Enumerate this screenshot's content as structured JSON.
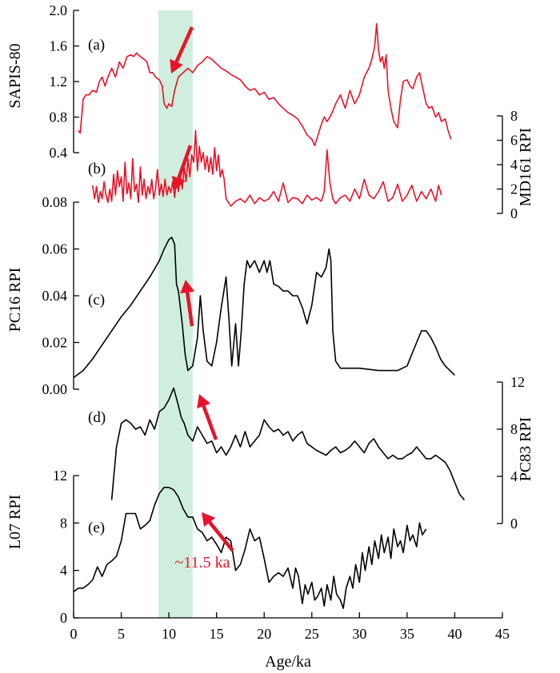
{
  "chart_data": {
    "type": "line",
    "xlabel": "Age/ka",
    "xlim": [
      0,
      45
    ],
    "xticks": [
      0,
      5,
      10,
      15,
      20,
      25,
      30,
      35,
      40,
      45
    ],
    "highlight": {
      "x_range": [
        8.9,
        12.5
      ],
      "color": "#cfeedd",
      "label": "~11.5 ka",
      "label_color": "#e8132a"
    },
    "arrow_color": "#e8132a",
    "panels": [
      {
        "id": "a",
        "label": "(a)",
        "ylabel": "SAPIS-80",
        "side": "left",
        "color": "#e8132a",
        "ylim": [
          0.4,
          2.0
        ],
        "ticks": [
          0.4,
          0.8,
          1.2,
          1.6,
          2.0
        ],
        "tick_labels": [
          "0.4",
          "0.8",
          "1.2",
          "1.6",
          "2.0"
        ],
        "x": [
          0.5,
          0.7,
          1.0,
          1.3,
          1.6,
          2.0,
          2.4,
          2.7,
          3.0,
          3.3,
          3.6,
          4.0,
          4.4,
          4.8,
          5.2,
          5.6,
          6.0,
          6.3,
          6.6,
          7.0,
          7.4,
          7.7,
          8.0,
          8.3,
          8.6,
          9.0,
          9.3,
          9.5,
          9.8,
          10.0,
          10.3,
          10.6,
          11.0,
          11.5,
          12.0,
          12.5,
          13.0,
          13.5,
          14.0,
          14.5,
          15.0,
          15.5,
          16.0,
          16.5,
          17.0,
          17.5,
          18.0,
          18.5,
          19.0,
          19.5,
          20.0,
          20.5,
          21.0,
          21.5,
          22.0,
          22.5,
          23.0,
          23.5,
          24.0,
          24.5,
          25.0,
          25.3,
          25.6,
          26.0,
          26.3,
          26.6,
          27.0,
          27.5,
          28.0,
          28.5,
          29.0,
          29.5,
          30.0,
          30.5,
          31.0,
          31.3,
          31.6,
          31.8,
          32.0,
          32.2,
          32.4,
          32.6,
          32.8,
          33.0,
          33.3,
          33.6,
          34.0,
          34.3,
          34.6,
          35.0,
          35.3,
          35.6,
          36.0,
          36.3,
          36.6,
          37.0,
          37.3,
          37.6,
          38.0,
          38.3,
          38.6,
          39.0,
          39.3,
          39.6
        ],
        "y": [
          0.65,
          0.62,
          1.0,
          1.05,
          1.05,
          1.1,
          1.08,
          1.2,
          1.25,
          1.15,
          1.25,
          1.35,
          1.25,
          1.42,
          1.35,
          1.48,
          1.5,
          1.48,
          1.52,
          1.48,
          1.45,
          1.42,
          1.3,
          1.3,
          1.25,
          1.22,
          1.15,
          0.95,
          0.9,
          0.95,
          0.92,
          1.1,
          1.25,
          1.3,
          1.35,
          1.3,
          1.38,
          1.42,
          1.48,
          1.45,
          1.4,
          1.35,
          1.32,
          1.28,
          1.25,
          1.22,
          1.15,
          1.1,
          1.12,
          1.05,
          1.08,
          1.0,
          1.02,
          0.95,
          0.9,
          0.85,
          0.82,
          0.78,
          0.7,
          0.6,
          0.55,
          0.48,
          0.58,
          0.72,
          0.8,
          0.75,
          0.82,
          0.95,
          1.05,
          0.9,
          1.1,
          0.95,
          1.05,
          1.25,
          1.35,
          1.45,
          1.6,
          1.85,
          1.55,
          1.42,
          1.48,
          1.35,
          1.5,
          1.1,
          0.9,
          0.75,
          0.68,
          1.0,
          1.2,
          1.22,
          1.15,
          1.12,
          1.25,
          1.3,
          1.15,
          0.95,
          0.9,
          0.92,
          0.8,
          0.85,
          0.75,
          0.78,
          0.65,
          0.55
        ]
      },
      {
        "id": "b",
        "label": "(b)",
        "ylabel": "MD161 RPI",
        "side": "right",
        "color": "#e8132a",
        "ylim": [
          0,
          8
        ],
        "ticks": [
          0,
          2,
          4,
          6,
          8
        ],
        "tick_labels": [
          "0",
          "2",
          "4",
          "6",
          "8"
        ],
        "x": [
          2.0,
          2.2,
          2.4,
          2.6,
          2.8,
          3.0,
          3.2,
          3.4,
          3.6,
          3.8,
          4.0,
          4.2,
          4.4,
          4.6,
          4.8,
          5.0,
          5.2,
          5.4,
          5.6,
          5.8,
          6.0,
          6.2,
          6.4,
          6.6,
          6.8,
          7.0,
          7.2,
          7.4,
          7.6,
          7.8,
          8.0,
          8.2,
          8.4,
          8.6,
          8.8,
          9.0,
          9.2,
          9.4,
          9.6,
          9.8,
          10.0,
          10.2,
          10.4,
          10.6,
          10.8,
          11.0,
          11.2,
          11.4,
          11.6,
          11.8,
          12.0,
          12.2,
          12.4,
          12.6,
          12.8,
          13.0,
          13.2,
          13.4,
          13.6,
          13.8,
          14.0,
          14.2,
          14.4,
          14.6,
          14.8,
          15.0,
          15.2,
          15.4,
          15.6,
          15.8,
          16.0,
          16.5,
          17.0,
          17.5,
          18.0,
          18.5,
          19.0,
          19.5,
          20.0,
          20.5,
          21.0,
          21.5,
          22.0,
          22.5,
          23.0,
          23.5,
          24.0,
          24.5,
          25.0,
          25.5,
          26.0,
          26.3,
          26.6,
          26.9,
          27.2,
          27.5,
          28.0,
          28.5,
          29.0,
          29.5,
          30.0,
          30.5,
          31.0,
          31.5,
          32.0,
          32.5,
          33.0,
          33.5,
          34.0,
          34.5,
          35.0,
          35.5,
          36.0,
          36.5,
          37.0,
          37.5,
          38.0,
          38.3,
          38.6
        ],
        "y": [
          2.3,
          1.2,
          2.2,
          0.9,
          1.8,
          1.2,
          2.6,
          1.5,
          0.9,
          2.0,
          1.0,
          3.2,
          1.5,
          3.5,
          2.2,
          3.0,
          1.0,
          4.2,
          1.6,
          2.5,
          1.2,
          4.5,
          1.8,
          2.4,
          0.9,
          3.8,
          1.5,
          2.8,
          1.2,
          2.2,
          1.6,
          2.8,
          1.2,
          2.0,
          3.6,
          1.5,
          2.4,
          1.4,
          2.8,
          1.5,
          2.2,
          1.7,
          2.6,
          1.3,
          2.8,
          1.8,
          3.0,
          2.0,
          3.8,
          2.6,
          4.5,
          3.0,
          4.8,
          4.2,
          6.8,
          3.5,
          5.5,
          4.2,
          5.0,
          3.6,
          4.7,
          3.4,
          4.6,
          3.2,
          5.4,
          3.5,
          4.8,
          3.0,
          3.6,
          2.8,
          1.2,
          0.6,
          1.0,
          1.2,
          0.9,
          1.5,
          0.8,
          1.3,
          1.0,
          1.2,
          1.8,
          1.0,
          2.5,
          0.9,
          1.3,
          1.2,
          0.8,
          1.5,
          1.1,
          1.3,
          1.0,
          1.8,
          5.2,
          2.5,
          1.2,
          0.8,
          1.3,
          1.5,
          1.0,
          2.0,
          1.2,
          2.8,
          1.5,
          1.2,
          1.8,
          2.6,
          1.0,
          1.3,
          2.4,
          1.0,
          1.5,
          2.3,
          1.0,
          1.8,
          1.2,
          2.0,
          1.0,
          2.3,
          1.5
        ]
      },
      {
        "id": "c",
        "label": "(c)",
        "ylabel": "PC16 RPI",
        "side": "left",
        "color": "#000000",
        "ylim": [
          0.0,
          0.08
        ],
        "ticks": [
          0.0,
          0.02,
          0.04,
          0.06,
          0.08
        ],
        "tick_labels": [
          "0.00",
          "0.02",
          "0.04",
          "0.06",
          "0.08"
        ],
        "x": [
          0.0,
          1.0,
          2.0,
          3.0,
          4.0,
          5.0,
          6.0,
          7.0,
          8.0,
          9.0,
          9.5,
          10.0,
          10.3,
          10.6,
          10.8,
          11.0,
          11.2,
          11.4,
          11.7,
          12.0,
          12.5,
          13.0,
          13.3,
          13.6,
          14.0,
          14.5,
          15.0,
          15.5,
          16.0,
          16.3,
          16.6,
          17.0,
          17.3,
          17.6,
          17.9,
          18.2,
          18.5,
          19.0,
          19.5,
          20.0,
          20.3,
          20.6,
          21.0,
          21.5,
          22.0,
          22.5,
          23.0,
          23.5,
          24.0,
          24.5,
          25.0,
          25.5,
          26.0,
          26.5,
          26.8,
          27.0,
          27.2,
          27.5,
          28.0,
          29.0,
          30.0,
          32.0,
          34.0,
          35.0,
          35.5,
          36.0,
          36.5,
          37.0,
          37.5,
          38.0,
          38.5,
          39.0,
          39.5,
          40.0
        ],
        "y": [
          0.005,
          0.008,
          0.013,
          0.019,
          0.025,
          0.031,
          0.036,
          0.042,
          0.048,
          0.055,
          0.06,
          0.064,
          0.065,
          0.062,
          0.045,
          0.042,
          0.035,
          0.028,
          0.015,
          0.008,
          0.01,
          0.022,
          0.04,
          0.025,
          0.012,
          0.01,
          0.02,
          0.035,
          0.048,
          0.03,
          0.01,
          0.028,
          0.01,
          0.025,
          0.045,
          0.055,
          0.052,
          0.055,
          0.05,
          0.055,
          0.05,
          0.055,
          0.045,
          0.044,
          0.042,
          0.042,
          0.04,
          0.04,
          0.035,
          0.028,
          0.036,
          0.05,
          0.048,
          0.052,
          0.06,
          0.055,
          0.025,
          0.012,
          0.009,
          0.009,
          0.009,
          0.008,
          0.008,
          0.01,
          0.015,
          0.02,
          0.025,
          0.025,
          0.022,
          0.018,
          0.013,
          0.01,
          0.008,
          0.006
        ]
      },
      {
        "id": "d",
        "label": "(d)",
        "ylabel": "PC83 RPI",
        "side": "right",
        "color": "#000000",
        "ylim": [
          0,
          12
        ],
        "ticks": [
          0,
          4,
          8,
          12
        ],
        "tick_labels": [
          "0",
          "4",
          "8",
          "12"
        ],
        "x": [
          4.0,
          4.5,
          5.0,
          5.5,
          6.0,
          6.5,
          7.0,
          7.5,
          8.0,
          8.5,
          9.0,
          9.5,
          10.0,
          10.5,
          11.0,
          11.3,
          11.6,
          12.0,
          12.5,
          13.0,
          13.5,
          14.0,
          14.5,
          15.0,
          15.5,
          16.0,
          16.5,
          17.0,
          17.5,
          18.0,
          18.5,
          19.0,
          19.5,
          20.0,
          20.5,
          21.0,
          21.5,
          22.0,
          22.5,
          23.0,
          23.5,
          24.0,
          24.5,
          25.0,
          25.5,
          26.0,
          26.5,
          27.0,
          27.5,
          28.0,
          28.5,
          29.0,
          29.5,
          30.0,
          30.5,
          31.0,
          31.5,
          32.0,
          32.5,
          33.0,
          33.5,
          34.0,
          34.5,
          35.0,
          35.5,
          36.0,
          36.5,
          37.0,
          37.5,
          38.0,
          38.5,
          39.0,
          39.5,
          40.0,
          40.5,
          41.0
        ],
        "y": [
          2.0,
          6.5,
          8.5,
          8.8,
          8.5,
          8.0,
          8.2,
          7.5,
          8.8,
          8.0,
          9.5,
          9.8,
          10.5,
          11.5,
          10.0,
          9.0,
          8.5,
          7.5,
          7.0,
          8.2,
          7.5,
          6.8,
          7.0,
          6.0,
          6.5,
          5.8,
          6.5,
          7.5,
          6.5,
          7.8,
          6.5,
          7.0,
          7.5,
          8.8,
          8.2,
          7.8,
          8.0,
          7.5,
          7.8,
          7.0,
          7.5,
          7.8,
          6.8,
          6.5,
          6.2,
          6.0,
          5.8,
          6.2,
          6.5,
          6.0,
          6.2,
          6.5,
          7.0,
          6.5,
          6.0,
          6.8,
          7.2,
          6.5,
          6.0,
          5.5,
          5.8,
          5.5,
          5.5,
          5.8,
          6.0,
          6.5,
          6.0,
          5.5,
          5.5,
          5.8,
          5.5,
          5.2,
          4.5,
          3.5,
          2.5,
          2.0
        ]
      },
      {
        "id": "e",
        "label": "(e)",
        "ylabel": "L07 RPI",
        "side": "left",
        "color": "#000000",
        "ylim": [
          0,
          12
        ],
        "ticks": [
          0,
          4,
          8,
          12
        ],
        "tick_labels": [
          "0",
          "4",
          "8",
          "12"
        ],
        "x": [
          0.0,
          0.5,
          1.0,
          1.5,
          2.0,
          2.5,
          3.0,
          3.5,
          4.0,
          4.5,
          5.0,
          5.5,
          6.0,
          6.5,
          7.0,
          7.5,
          8.0,
          8.5,
          9.0,
          9.5,
          10.0,
          10.5,
          11.0,
          11.5,
          12.0,
          12.5,
          13.0,
          13.5,
          14.0,
          14.5,
          15.0,
          15.5,
          16.0,
          16.5,
          17.0,
          17.5,
          18.0,
          18.5,
          19.0,
          19.5,
          20.0,
          20.5,
          21.0,
          21.5,
          22.0,
          22.5,
          23.0,
          23.3,
          23.6,
          24.0,
          24.3,
          24.6,
          25.0,
          25.3,
          25.6,
          26.0,
          26.3,
          26.6,
          27.0,
          27.3,
          27.6,
          28.0,
          28.3,
          28.6,
          29.0,
          29.3,
          29.6,
          30.0,
          30.3,
          30.6,
          31.0,
          31.3,
          31.6,
          32.0,
          32.3,
          32.6,
          33.0,
          33.3,
          33.6,
          34.0,
          34.3,
          34.6,
          35.0,
          35.3,
          35.6,
          36.0,
          36.3,
          36.6,
          37.0
        ],
        "y": [
          2.2,
          2.5,
          2.5,
          2.8,
          3.2,
          4.3,
          3.5,
          4.5,
          4.8,
          5.2,
          6.5,
          8.8,
          8.8,
          8.8,
          7.5,
          7.8,
          8.2,
          9.5,
          10.5,
          11.0,
          11.0,
          10.8,
          10.2,
          9.2,
          8.5,
          8.5,
          7.5,
          7.2,
          6.5,
          6.8,
          6.2,
          5.5,
          6.8,
          6.5,
          4.0,
          4.5,
          5.8,
          7.5,
          6.5,
          6.8,
          5.0,
          3.0,
          3.5,
          3.8,
          3.5,
          4.2,
          2.5,
          4.2,
          3.5,
          1.2,
          2.8,
          2.0,
          3.0,
          1.5,
          1.8,
          2.5,
          1.0,
          2.8,
          1.5,
          3.5,
          2.0,
          1.5,
          0.8,
          2.5,
          3.5,
          2.5,
          4.5,
          3.0,
          5.5,
          4.0,
          6.0,
          4.5,
          6.5,
          5.0,
          7.0,
          5.5,
          6.8,
          5.0,
          7.5,
          6.0,
          6.5,
          5.5,
          7.8,
          6.5,
          7.0,
          6.0,
          8.0,
          7.0,
          7.5
        ]
      }
    ]
  }
}
